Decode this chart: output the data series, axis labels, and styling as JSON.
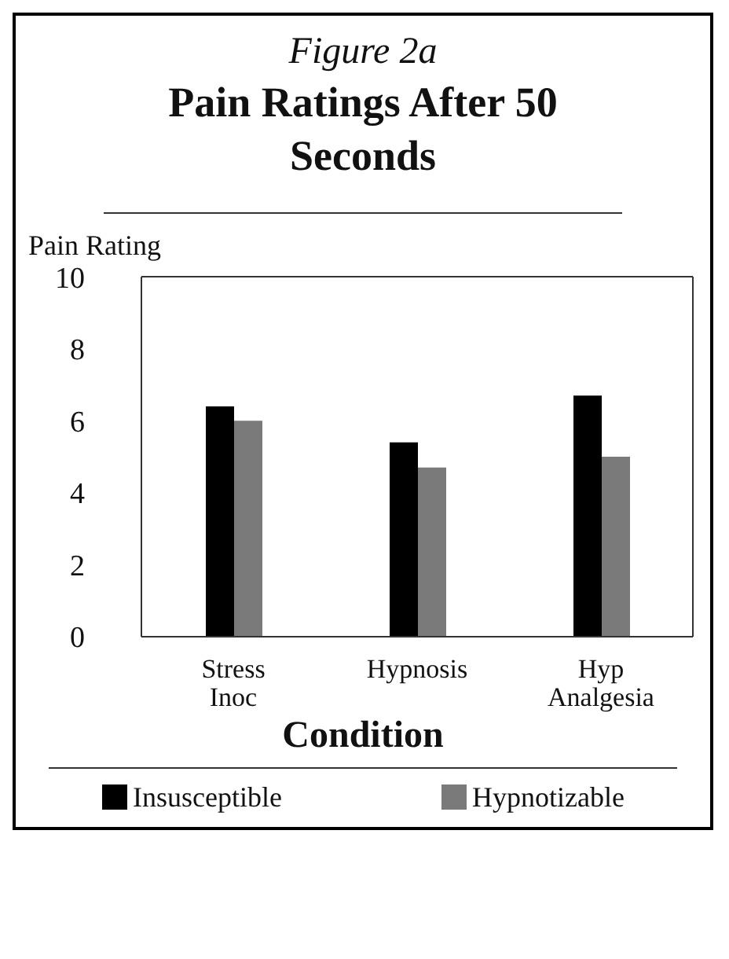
{
  "chart_data": {
    "type": "bar",
    "subtitle": "Figure 2a",
    "title": "Pain Ratings After 50 Seconds",
    "ylabel": "Pain Rating",
    "xlabel": "Condition",
    "categories": [
      "Stress Inoc",
      "Hypnosis",
      "Hyp Analgesia"
    ],
    "series": [
      {
        "name": "Insusceptible",
        "color": "#000000",
        "values": [
          6.4,
          5.4,
          6.7
        ]
      },
      {
        "name": "Hypnotizable",
        "color": "#7a7a7a",
        "values": [
          6.0,
          4.7,
          5.0
        ]
      }
    ],
    "ylim": [
      0,
      10
    ],
    "yticks": [
      0,
      2,
      4,
      6,
      8,
      10
    ],
    "grid": false,
    "legend": "bottom"
  }
}
